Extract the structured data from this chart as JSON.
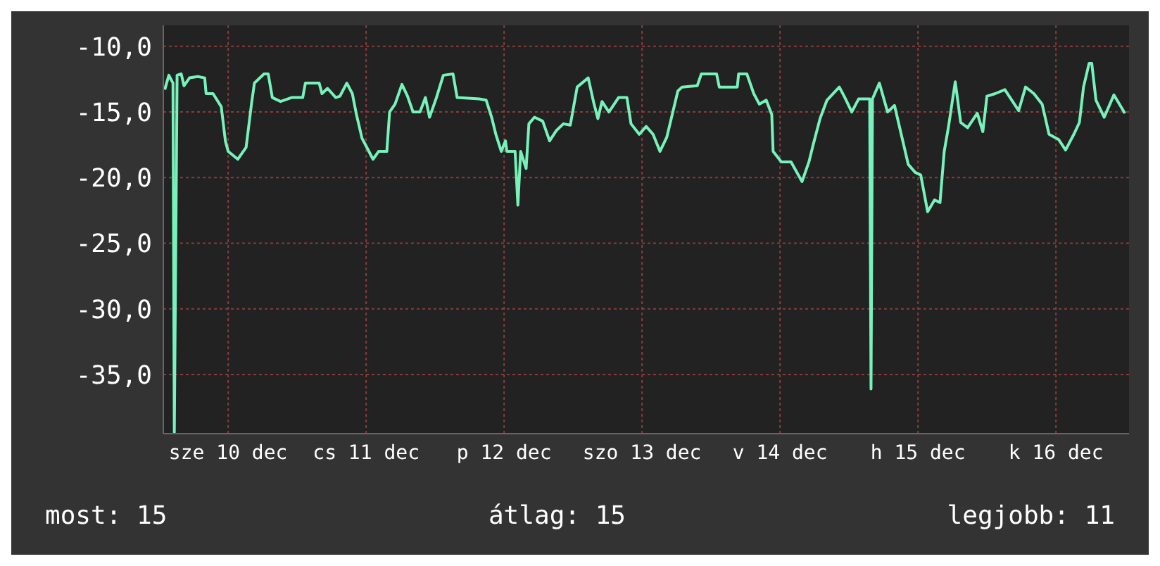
{
  "chart_data": {
    "type": "line",
    "x": [
      "--12-09T12:58",
      "--12-09T13:41",
      "--12-09T14:24",
      "--12-09T14:38",
      "--12-09T15:07",
      "--12-09T15:50",
      "--12-09T16:19",
      "--12-09T17:17",
      "--12-09T18:43",
      "--12-09T19:55",
      "--12-09T20:10",
      "--12-09T21:22",
      "--12-09T22:48",
      "--12-09T23:31",
      "--12-10T00:00",
      "--12-10T01:41",
      "--12-10T03:07",
      "--12-10T04:05",
      "--12-10T04:34",
      "--12-10T06:14",
      "--12-10T06:58",
      "--12-10T07:41",
      "--12-10T09:07",
      "--12-10T11:02",
      "--12-10T12:58",
      "--12-10T13:26",
      "--12-10T15:50",
      "--12-10T16:19",
      "--12-10T17:17",
      "--12-10T18:43",
      "--12-10T19:26",
      "--12-10T20:38",
      "--12-10T21:36",
      "--12-10T22:19",
      "--12-10T23:17",
      "--12-11T00:29",
      "--12-11T01:12",
      "--12-11T02:10",
      "--12-11T03:36",
      "--12-11T04:05",
      "--12-11T05:02",
      "--12-11T06:14",
      "--12-11T07:12",
      "--12-11T08:10",
      "--12-11T09:22",
      "--12-11T10:19",
      "--12-11T11:02",
      "--12-11T12:14",
      "--12-11T13:26",
      "--12-11T15:07",
      "--12-11T15:50",
      "--12-11T19:41",
      "--12-11T20:53",
      "--12-11T21:50",
      "--12-11T22:34",
      "--12-11T23:31",
      "--12-12T00:14",
      "--12-12T00:29",
      "--12-12T01:55",
      "--12-12T02:24",
      "--12-12T02:53",
      "--12-12T03:50",
      "--12-12T04:19",
      "--12-12T05:17",
      "--12-12T06:43",
      "--12-12T07:55",
      "--12-12T09:07",
      "--12-12T10:19",
      "--12-12T11:31",
      "--12-12T12:43",
      "--12-12T14:38",
      "--12-12T15:36",
      "--12-12T16:19",
      "--12-12T17:02",
      "--12-12T18:14",
      "--12-12T19:55",
      "--12-12T21:22",
      "--12-12T22:05",
      "--12-12T23:31",
      "--12-13T00:43",
      "--12-13T01:55",
      "--12-13T03:07",
      "--12-13T04:19",
      "--12-13T06:14",
      "--12-13T06:58",
      "--12-13T09:36",
      "--12-13T10:19",
      "--12-13T12:58",
      "--12-13T13:26",
      "--12-13T16:34",
      "--12-13T16:48",
      "--12-13T18:14",
      "--12-13T19:26",
      "--12-13T20:24",
      "--12-13T21:36",
      "--12-13T22:34",
      "--12-13T22:48",
      "--12-14T00:14",
      "--12-14T01:55",
      "--12-14T03:50",
      "--12-14T05:02",
      "--12-14T05:46",
      "--12-14T06:58",
      "--12-14T08:10",
      "--12-14T10:19",
      "--12-14T11:17",
      "--12-14T12:29",
      "--12-14T13:41",
      "--12-14T15:36",
      "--12-14T15:50",
      "--12-14T16:05",
      "--12-14T17:17",
      "--12-14T18:43",
      "--12-14T19:55",
      "--12-14T22:19",
      "--12-14T23:31",
      "--12-15T00:29",
      "--12-15T01:41",
      "--12-15T02:53",
      "--12-15T03:50",
      "--12-15T04:34",
      "--12-15T05:17",
      "--12-15T06:29",
      "--12-15T07:26",
      "--12-15T08:38",
      "--12-15T10:19",
      "--12-15T11:17",
      "--12-15T12:00",
      "--12-15T13:26",
      "--12-15T15:07",
      "--12-15T17:31",
      "--12-15T18:43",
      "--12-15T20:10",
      "--12-15T21:36",
      "--12-15T22:48",
      "--12-16T00:29",
      "--12-16T01:41",
      "--12-16T03:07",
      "--12-16T04:05",
      "--12-16T04:48",
      "--12-16T05:46",
      "--12-16T06:14",
      "--12-16T06:58",
      "--12-16T08:24",
      "--12-16T10:05",
      "--12-16T12:00"
    ],
    "series": [
      {
        "color": "#77f2bb",
        "values": [
          -13.3,
          -12.2,
          -12.8,
          -39.4,
          -12.2,
          -12.1,
          -13.0,
          -12.4,
          -12.3,
          -12.4,
          -13.6,
          -13.6,
          -14.6,
          -17.2,
          -18.0,
          -18.6,
          -17.7,
          -14.3,
          -12.8,
          -12.1,
          -12.1,
          -13.9,
          -14.2,
          -13.9,
          -13.9,
          -12.8,
          -12.8,
          -13.6,
          -13.2,
          -13.9,
          -13.8,
          -12.8,
          -13.6,
          -15.2,
          -17.0,
          -18.0,
          -18.6,
          -18.0,
          -18.0,
          -15.0,
          -14.4,
          -12.9,
          -13.8,
          -15.0,
          -15.0,
          -13.9,
          -15.4,
          -13.9,
          -12.2,
          -12.1,
          -13.9,
          -14.0,
          -14.1,
          -15.4,
          -16.7,
          -18.0,
          -17.2,
          -18.0,
          -18.0,
          -22.1,
          -18.0,
          -19.3,
          -15.9,
          -15.4,
          -15.7,
          -17.2,
          -16.4,
          -15.9,
          -16.0,
          -13.1,
          -12.4,
          -14.3,
          -15.5,
          -14.2,
          -15.0,
          -13.9,
          -13.9,
          -15.9,
          -16.7,
          -16.1,
          -16.7,
          -18.0,
          -16.9,
          -13.4,
          -13.1,
          -13.0,
          -12.1,
          -12.1,
          -13.1,
          -13.1,
          -12.1,
          -12.1,
          -13.6,
          -14.4,
          -14.1,
          -15.2,
          -18.0,
          -18.8,
          -18.8,
          -20.3,
          -18.8,
          -17.5,
          -15.5,
          -14.1,
          -13.1,
          -13.9,
          -15.0,
          -14.0,
          -14.0,
          -36.1,
          -14.0,
          -12.8,
          -15.0,
          -14.5,
          -19.0,
          -19.6,
          -19.8,
          -22.6,
          -21.7,
          -21.9,
          -18.0,
          -16.2,
          -12.7,
          -15.8,
          -16.2,
          -15.1,
          -16.5,
          -13.8,
          -13.6,
          -13.3,
          -14.9,
          -13.1,
          -13.6,
          -14.4,
          -16.7,
          -17.1,
          -17.9,
          -16.7,
          -15.8,
          -13.1,
          -11.3,
          -11.3,
          -14.1,
          -15.4,
          -13.7,
          -15.1
        ]
      }
    ],
    "xlim": [
      "--12-09T12:43",
      "--12-16T12:43"
    ],
    "xticks": [
      {
        "value": "--12-10",
        "label": "sze 10 dec"
      },
      {
        "value": "--12-11",
        "label": "cs 11 dec"
      },
      {
        "value": "--12-12",
        "label": "p 12 dec"
      },
      {
        "value": "--12-13",
        "label": "szo 13 dec"
      },
      {
        "value": "--12-14",
        "label": "v 14 dec"
      },
      {
        "value": "--12-15",
        "label": "h 15 dec"
      },
      {
        "value": "--12-16",
        "label": "k 16 dec"
      }
    ],
    "ylim": [
      -39.5,
      -8.4
    ],
    "yticks": [
      {
        "value": -10,
        "label": "-10,0"
      },
      {
        "value": -15,
        "label": "-15,0"
      },
      {
        "value": -20,
        "label": "-20,0"
      },
      {
        "value": -25,
        "label": "-25,0"
      },
      {
        "value": -30,
        "label": "-30,0"
      },
      {
        "value": -35,
        "label": "-35,0"
      }
    ],
    "grid": true,
    "line_style": "solid",
    "annotations": [
      "most: 15",
      "átlag: 15",
      "legjobb: 11"
    ]
  }
}
